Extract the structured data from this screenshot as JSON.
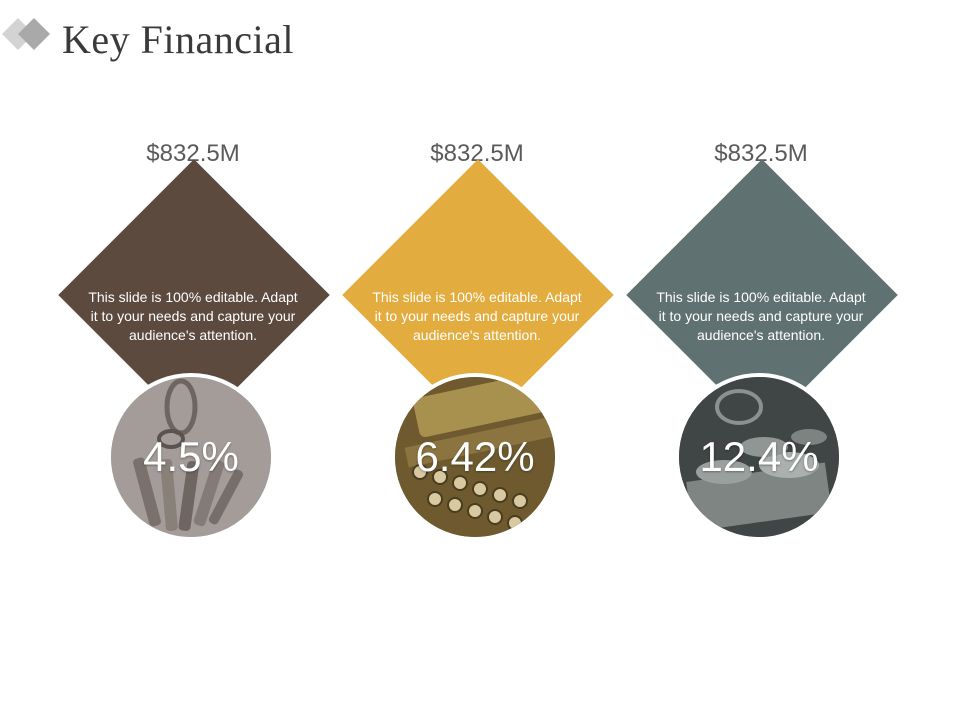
{
  "slide": {
    "title": "Key Financial",
    "cards": [
      {
        "amount": "$832.5M",
        "description": "This slide is 100% editable. Adapt it to your needs and capture your audience's attention.",
        "percentage": "4.5%",
        "diamond_color": "#5d4a3f",
        "image_icon": "keys-photo-icon"
      },
      {
        "amount": "$832.5M",
        "description": "This slide is 100% editable. Adapt it to your needs and capture your audience's attention.",
        "percentage": "6.42%",
        "diamond_color": "#e2ac3f",
        "image_icon": "typewriter-photo-icon"
      },
      {
        "amount": "$832.5M",
        "description": "This slide is 100% editable. Adapt it to your needs and capture your audience's attention.",
        "percentage": "12.4%",
        "diamond_color": "#5f7170",
        "image_icon": "coins-photo-icon"
      }
    ]
  }
}
